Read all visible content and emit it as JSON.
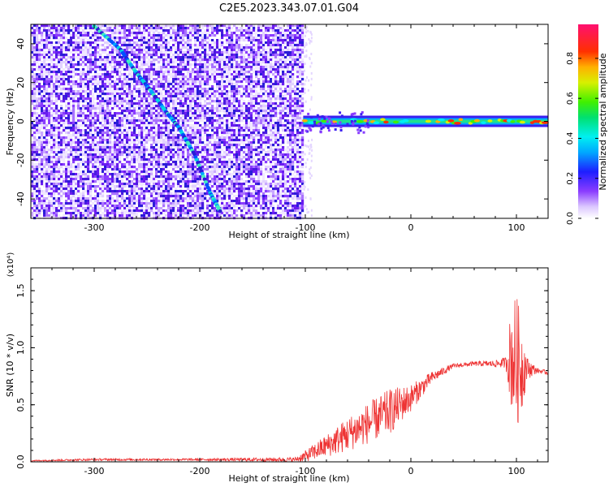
{
  "title": "C2E5.2023.343.07.01.G04",
  "colorbar": {
    "label": "Normalized spectral amplitude",
    "ticks": [
      0.0,
      0.2,
      0.4,
      0.6,
      0.8
    ],
    "tick_labels": [
      "0.0",
      "0.2",
      "0.4",
      "0.6",
      "0.8"
    ],
    "range": [
      0.0,
      0.97
    ]
  },
  "chart_data": [
    {
      "type": "heatmap",
      "title": "C2E5.2023.343.07.01.G04",
      "xlabel": "Height of straight line (km)",
      "ylabel": "Frequency (Hz)",
      "xlim": [
        -360,
        130
      ],
      "ylim": [
        -50,
        50
      ],
      "x_ticks": [
        -300,
        -200,
        -100,
        0,
        100
      ],
      "x_tick_labels": [
        "-300",
        "-200",
        "-100",
        "0",
        "100"
      ],
      "y_ticks": [
        -40,
        -20,
        0,
        20,
        40
      ],
      "y_tick_labels": [
        "-40",
        "-20",
        "0",
        "20",
        "40"
      ],
      "colormap": "rainbow (violet = low, red/magenta = high)",
      "features": [
        {
          "name": "broadband noise",
          "x_range": [
            -360,
            -102
          ],
          "y_range": [
            -50,
            50
          ],
          "amplitude": 0.1
        },
        {
          "name": "diagonal trace",
          "x": [
            -300,
            -275,
            -260,
            -248,
            -232,
            -220,
            -205,
            -190,
            -180
          ],
          "y": [
            49,
            37,
            25,
            17,
            5,
            -3,
            -17,
            -37,
            -47
          ],
          "amplitude": 0.2
        },
        {
          "name": "carrier line",
          "y": 0,
          "x_range": [
            -102,
            130
          ],
          "amplitude": 0.85
        }
      ]
    },
    {
      "type": "line",
      "xlabel": "Height of straight line (km)",
      "ylabel": "SNR (10 * v/v)",
      "multiplier_label": "(x10⁴)",
      "xlim": [
        -360,
        130
      ],
      "ylim": [
        0,
        1.7
      ],
      "x_ticks": [
        -300,
        -200,
        -100,
        0,
        100
      ],
      "x_tick_labels": [
        "-300",
        "-200",
        "-100",
        "0",
        "100"
      ],
      "y_ticks": [
        0.0,
        0.5,
        1.0,
        1.5
      ],
      "y_tick_labels": [
        "0.0",
        "0.5",
        "1.0",
        "1.5"
      ],
      "color": "#ee3333",
      "series": [
        {
          "x": [
            -360,
            -300,
            -200,
            -110,
            -100,
            -80,
            -60,
            -40,
            -20,
            0,
            20,
            40,
            60,
            80,
            90,
            95,
            100,
            105,
            110,
            120,
            130
          ],
          "y": [
            0.01,
            0.02,
            0.02,
            0.02,
            0.05,
            0.14,
            0.24,
            0.34,
            0.44,
            0.56,
            0.74,
            0.84,
            0.86,
            0.86,
            0.87,
            0.92,
            0.88,
            0.83,
            0.82,
            0.8,
            0.78
          ],
          "noise": [
            0.005,
            0.01,
            0.01,
            0.02,
            0.05,
            0.1,
            0.15,
            0.18,
            0.2,
            0.12,
            0.05,
            0.02,
            0.02,
            0.03,
            0.05,
            0.45,
            0.6,
            0.4,
            0.1,
            0.02,
            0.02
          ]
        }
      ]
    }
  ]
}
